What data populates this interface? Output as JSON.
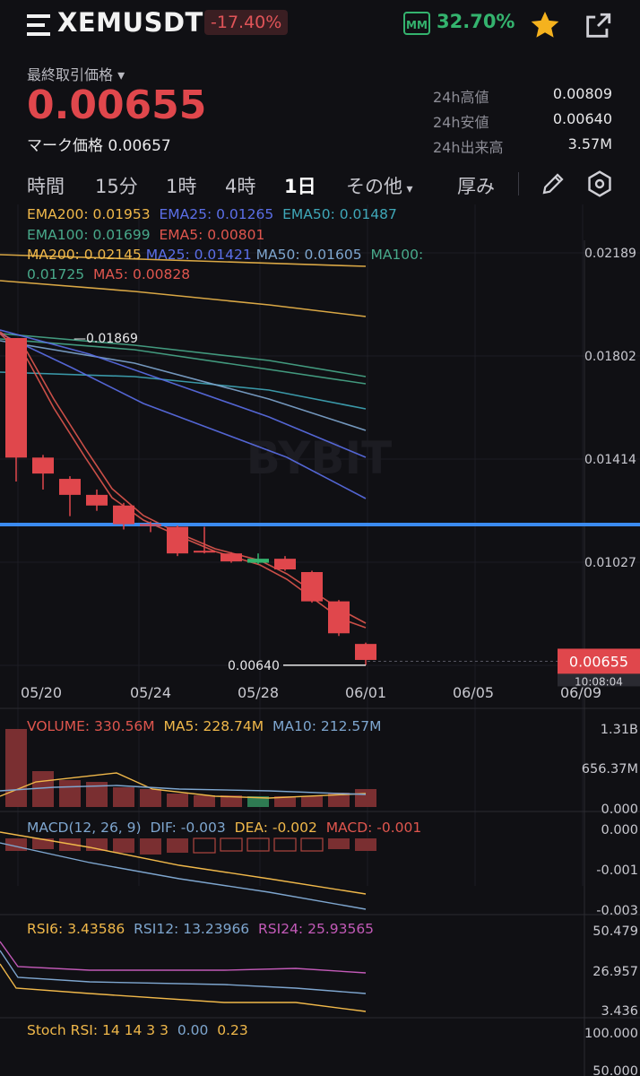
{
  "header": {
    "symbol": "XEMUSDT",
    "change": "-17.40%",
    "mm_label": "MM",
    "mm_value": "32.70%"
  },
  "price": {
    "last_label": "最終取引価格",
    "last": "0.00655",
    "mark_label": "マーク価格",
    "mark": "0.00657",
    "mark_text": "マーク価格 0.00657"
  },
  "stats": [
    {
      "label": "24h高値",
      "value": "0.00809"
    },
    {
      "label": "24h安値",
      "value": "0.00640"
    },
    {
      "label": "24h出来高",
      "value": "3.57M"
    }
  ],
  "tabs": [
    "時間",
    "15分",
    "1時",
    "4時",
    "1日",
    "その他",
    "厚み"
  ],
  "active_tab": "1日",
  "indicators": {
    "ema200": "EMA200: 0.01953",
    "ema25": "EMA25: 0.01265",
    "ema50": "EMA50: 0.01487",
    "ema100": "EMA100: 0.01699",
    "ema5": "EMA5: 0.00801",
    "ma200": "MA200: 0.02145",
    "ma25": "MA25: 0.01421",
    "ma50": "MA50: 0.01605",
    "ma100_a": "MA100:",
    "ma100_b": "0.01725",
    "ma5": "MA5: 0.00828"
  },
  "volume": {
    "vol": "VOLUME: 330.56M",
    "ma5": "MA5: 228.74M",
    "ma10": "MA10: 212.57M"
  },
  "macd": {
    "title": "MACD(12, 26, 9)",
    "dif": "DIF: -0.003",
    "dea": "DEA: -0.002",
    "macd": "MACD: -0.001"
  },
  "rsi": {
    "rsi6": "RSI6: 3.43586",
    "rsi12": "RSI12: 13.23966",
    "rsi24": "RSI24: 25.93565"
  },
  "stoch": {
    "title": "Stoch RSI: 14 14 3 3",
    "k": "0.00",
    "d": "0.23"
  },
  "watermark": "BYBIT",
  "colors": {
    "up": "#34b36e",
    "down": "#e0474c",
    "price_line": "#3b8bf0",
    "ema200": "#f0b84a",
    "background": "#101014"
  },
  "chart_data": {
    "type": "candlestick",
    "x_ticks": [
      "05/20",
      "05/24",
      "05/28",
      "06/01",
      "06/05",
      "06/09"
    ],
    "y_ticks": [
      "0.02189",
      "0.01802",
      "0.01414",
      "0.01027"
    ],
    "candles": [
      {
        "o": 0.01869,
        "h": 0.01869,
        "l": 0.0133,
        "c": 0.0142
      },
      {
        "o": 0.0142,
        "h": 0.0143,
        "l": 0.013,
        "c": 0.0136
      },
      {
        "o": 0.0134,
        "h": 0.0135,
        "l": 0.012,
        "c": 0.0128
      },
      {
        "o": 0.0128,
        "h": 0.013,
        "l": 0.0122,
        "c": 0.0124
      },
      {
        "o": 0.0124,
        "h": 0.0125,
        "l": 0.0115,
        "c": 0.0117
      },
      {
        "o": 0.0117,
        "h": 0.0118,
        "l": 0.0114,
        "c": 0.01165
      },
      {
        "o": 0.0116,
        "h": 0.01165,
        "l": 0.0105,
        "c": 0.0106
      },
      {
        "o": 0.0107,
        "h": 0.0116,
        "l": 0.0106,
        "c": 0.01065
      },
      {
        "o": 0.0106,
        "h": 0.01065,
        "l": 0.01025,
        "c": 0.0103
      },
      {
        "o": 0.01025,
        "h": 0.0106,
        "l": 0.0102,
        "c": 0.0104
      },
      {
        "o": 0.0104,
        "h": 0.0105,
        "l": 0.00995,
        "c": 0.01
      },
      {
        "o": 0.0099,
        "h": 0.00995,
        "l": 0.00875,
        "c": 0.0088
      },
      {
        "o": 0.0088,
        "h": 0.00885,
        "l": 0.0075,
        "c": 0.0076
      },
      {
        "o": 0.0072,
        "h": 0.00725,
        "l": 0.0064,
        "c": 0.0066
      }
    ],
    "annotations": {
      "high": "0.01869",
      "low": "0.00640",
      "current": "0.00655",
      "sub_label": "10:08:04"
    }
  },
  "sub_axes": {
    "vol": [
      "1.31B",
      "656.37M",
      "0.000"
    ],
    "macd": [
      "0.000",
      "-0.001",
      "-0.003"
    ],
    "rsi": [
      "50.479",
      "26.957",
      "3.436"
    ],
    "stoch": [
      "100.000",
      "50.000"
    ]
  }
}
